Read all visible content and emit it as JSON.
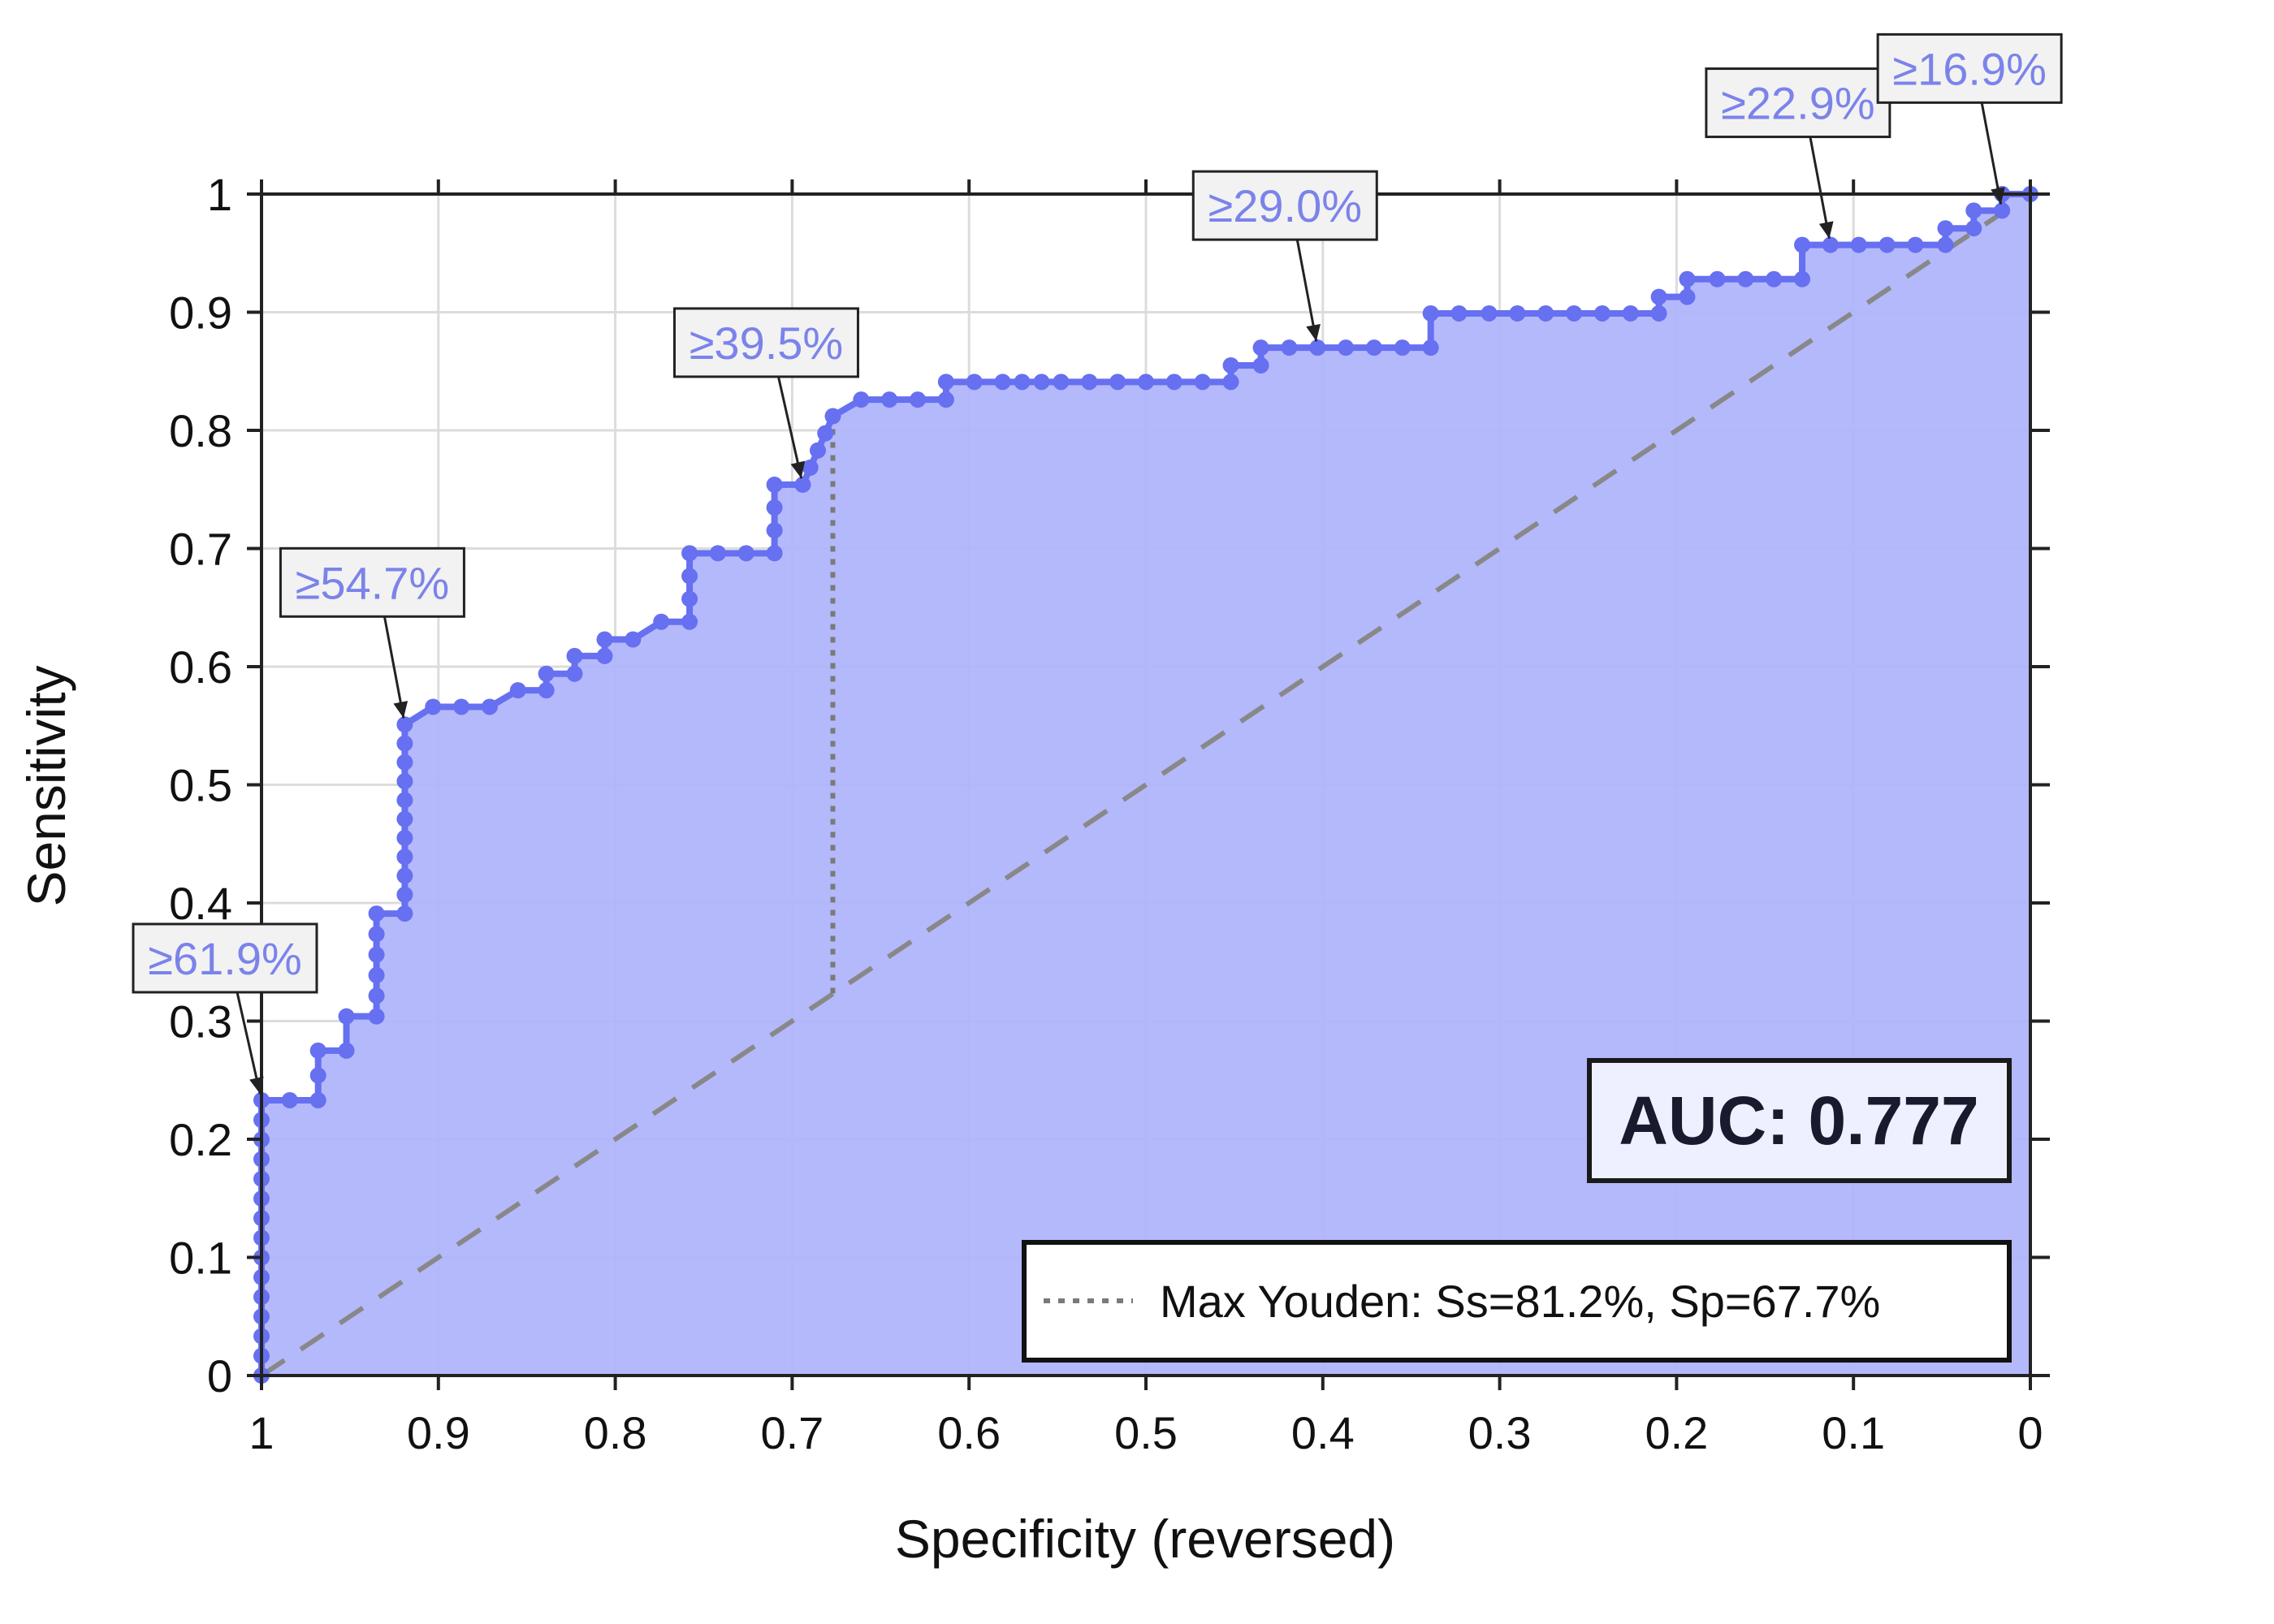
{
  "chart_data": {
    "type": "line",
    "xlabel": "Specificity (reversed)",
    "ylabel": "Sensitivity",
    "xlim": [
      1,
      0
    ],
    "ylim": [
      0,
      1
    ],
    "x_ticks": [
      "1",
      "0.9",
      "0.8",
      "0.7",
      "0.6",
      "0.5",
      "0.4",
      "0.3",
      "0.2",
      "0.1",
      "0"
    ],
    "y_ticks": [
      "0",
      "0.1",
      "0.2",
      "0.3",
      "0.4",
      "0.5",
      "0.6",
      "0.7",
      "0.8",
      "0.9",
      "1"
    ],
    "grid": true,
    "series": [
      {
        "specificity": [
          1,
          1,
          0.984,
          0.968,
          0.968,
          0.952,
          0.952,
          0.935,
          0.935,
          0.919,
          0.919,
          0.903,
          0.887,
          0.871,
          0.855,
          0.839,
          0.839,
          0.823,
          0.823,
          0.806,
          0.806,
          0.79,
          0.774,
          0.758,
          0.758,
          0.742,
          0.726,
          0.71,
          0.71,
          0.694,
          0.677,
          0.661,
          0.645,
          0.629,
          0.613,
          0.613,
          0.597,
          0.581,
          0.548,
          0.532,
          0.516,
          0.5,
          0.484,
          0.468,
          0.452,
          0.452,
          0.435,
          0.435,
          0.419,
          0.403,
          0.387,
          0.371,
          0.355,
          0.339,
          0.339,
          0.323,
          0.306,
          0.29,
          0.274,
          0.258,
          0.242,
          0.226,
          0.21,
          0.21,
          0.194,
          0.194,
          0.177,
          0.161,
          0.145,
          0.129,
          0.129,
          0.113,
          0.097,
          0.081,
          0.065,
          0.048,
          0.048,
          0.032,
          0.032,
          0.016,
          0.016,
          0
        ],
        "sensitivity": [
          0,
          0.233,
          0.233,
          0.233,
          0.275,
          0.275,
          0.304,
          0.304,
          0.391,
          0.391,
          0.551,
          0.566,
          0.566,
          0.566,
          0.58,
          0.58,
          0.594,
          0.594,
          0.609,
          0.609,
          0.623,
          0.623,
          0.638,
          0.638,
          0.696,
          0.696,
          0.696,
          0.696,
          0.754,
          0.754,
          0.812,
          0.826,
          0.826,
          0.826,
          0.826,
          0.841,
          0.841,
          0.841,
          0.841,
          0.841,
          0.841,
          0.841,
          0.841,
          0.841,
          0.841,
          0.855,
          0.855,
          0.87,
          0.87,
          0.87,
          0.87,
          0.87,
          0.87,
          0.87,
          0.899,
          0.899,
          0.899,
          0.899,
          0.899,
          0.899,
          0.899,
          0.899,
          0.899,
          0.913,
          0.913,
          0.928,
          0.928,
          0.928,
          0.928,
          0.928,
          0.957,
          0.957,
          0.957,
          0.957,
          0.957,
          0.957,
          0.971,
          0.971,
          0.986,
          0.986,
          1,
          1
        ]
      }
    ],
    "diagonal_reference": true,
    "youden_point": {
      "specificity": 0.677,
      "sensitivity": 0.812
    },
    "annotations": [
      {
        "label": "≥61.9%",
        "specificity": 1.0,
        "sensitivity": 0.233
      },
      {
        "label": "≥54.7%",
        "specificity": 0.919,
        "sensitivity": 0.551
      },
      {
        "label": "≥39.5%",
        "specificity": 0.694,
        "sensitivity": 0.754
      },
      {
        "label": "≥29.0%",
        "specificity": 0.403,
        "sensitivity": 0.87
      },
      {
        "label": "≥22.9%",
        "specificity": 0.113,
        "sensitivity": 0.957
      },
      {
        "label": "≥16.9%",
        "specificity": 0.016,
        "sensitivity": 0.986
      }
    ],
    "auc_label": "AUC: 0.777",
    "legend_label": "Max Youden: Ss=81.2%, Sp=67.7%",
    "legend_position": "bottom-right",
    "colors": {
      "line": "#6670f0",
      "fill": "#aeb3fb",
      "annotation_text": "#7b83ea",
      "reference": "#888888",
      "youden": "#7a7a7a"
    }
  }
}
